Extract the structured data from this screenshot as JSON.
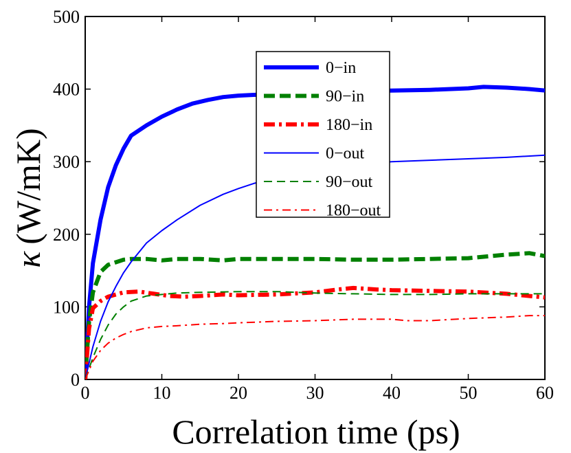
{
  "chart_data": {
    "type": "line",
    "title": "",
    "xlabel": "Correlation time (ps)",
    "ylabel_symbol": "κ",
    "ylabel_unit": "(W/mK)",
    "xlim": [
      0,
      60
    ],
    "ylim": [
      0,
      500
    ],
    "xticks": [
      0,
      10,
      20,
      30,
      40,
      50,
      60
    ],
    "yticks": [
      0,
      100,
      200,
      300,
      400,
      500
    ],
    "grid": false,
    "legend_position": "top-center",
    "series": [
      {
        "name": "0−in",
        "color": "#0000ff",
        "style": "solid",
        "weight": "thick",
        "points": [
          [
            0,
            0
          ],
          [
            0.5,
            100
          ],
          [
            1,
            160
          ],
          [
            2,
            220
          ],
          [
            3,
            265
          ],
          [
            4,
            295
          ],
          [
            5,
            318
          ],
          [
            6,
            336
          ],
          [
            8,
            350
          ],
          [
            10,
            362
          ],
          [
            12,
            372
          ],
          [
            14,
            380
          ],
          [
            16,
            385
          ],
          [
            18,
            389
          ],
          [
            20,
            391
          ],
          [
            22,
            392
          ],
          [
            25,
            393
          ],
          [
            28,
            394
          ],
          [
            30,
            395
          ],
          [
            35,
            397
          ],
          [
            40,
            398
          ],
          [
            45,
            399
          ],
          [
            50,
            401
          ],
          [
            52,
            403
          ],
          [
            55,
            402
          ],
          [
            58,
            400
          ],
          [
            60,
            398
          ]
        ]
      },
      {
        "name": "90−in",
        "color": "#008000",
        "style": "dashed",
        "weight": "thick",
        "points": [
          [
            0,
            0
          ],
          [
            0.5,
            80
          ],
          [
            1,
            120
          ],
          [
            2,
            148
          ],
          [
            3,
            158
          ],
          [
            5,
            165
          ],
          [
            6,
            166
          ],
          [
            8,
            166
          ],
          [
            10,
            164
          ],
          [
            12,
            166
          ],
          [
            15,
            166
          ],
          [
            18,
            164
          ],
          [
            20,
            166
          ],
          [
            25,
            166
          ],
          [
            30,
            166
          ],
          [
            35,
            165
          ],
          [
            40,
            165
          ],
          [
            45,
            166
          ],
          [
            50,
            167
          ],
          [
            55,
            172
          ],
          [
            58,
            174
          ],
          [
            60,
            170
          ]
        ]
      },
      {
        "name": "180−in",
        "color": "#ff0000",
        "style": "dashdot",
        "weight": "thick",
        "points": [
          [
            0,
            0
          ],
          [
            0.5,
            70
          ],
          [
            1,
            98
          ],
          [
            2,
            108
          ],
          [
            3,
            114
          ],
          [
            5,
            120
          ],
          [
            7,
            121
          ],
          [
            9,
            118
          ],
          [
            11,
            115
          ],
          [
            13,
            114
          ],
          [
            15,
            115
          ],
          [
            18,
            117
          ],
          [
            20,
            116
          ],
          [
            25,
            117
          ],
          [
            30,
            120
          ],
          [
            33,
            124
          ],
          [
            35,
            126
          ],
          [
            38,
            124
          ],
          [
            40,
            123
          ],
          [
            45,
            122
          ],
          [
            50,
            121
          ],
          [
            55,
            118
          ],
          [
            58,
            115
          ],
          [
            60,
            113
          ]
        ]
      },
      {
        "name": "0−out",
        "color": "#0000ff",
        "style": "solid",
        "weight": "thin",
        "points": [
          [
            0,
            0
          ],
          [
            1,
            45
          ],
          [
            2,
            80
          ],
          [
            3,
            107
          ],
          [
            4,
            128
          ],
          [
            5,
            147
          ],
          [
            6,
            162
          ],
          [
            8,
            188
          ],
          [
            10,
            205
          ],
          [
            12,
            220
          ],
          [
            15,
            240
          ],
          [
            18,
            255
          ],
          [
            20,
            263
          ],
          [
            22,
            270
          ],
          [
            25,
            278
          ],
          [
            28,
            284
          ],
          [
            30,
            288
          ],
          [
            35,
            296
          ],
          [
            40,
            300
          ],
          [
            45,
            302
          ],
          [
            50,
            304
          ],
          [
            55,
            306
          ],
          [
            60,
            309
          ]
        ]
      },
      {
        "name": "90−out",
        "color": "#008000",
        "style": "dashed",
        "weight": "thin",
        "points": [
          [
            0,
            0
          ],
          [
            1,
            30
          ],
          [
            2,
            55
          ],
          [
            3,
            75
          ],
          [
            4,
            90
          ],
          [
            5,
            100
          ],
          [
            6,
            108
          ],
          [
            8,
            115
          ],
          [
            10,
            117
          ],
          [
            12,
            119
          ],
          [
            15,
            120
          ],
          [
            20,
            121
          ],
          [
            25,
            121
          ],
          [
            30,
            119
          ],
          [
            35,
            118
          ],
          [
            40,
            117
          ],
          [
            45,
            117
          ],
          [
            50,
            118
          ],
          [
            55,
            118
          ],
          [
            60,
            118
          ]
        ]
      },
      {
        "name": "180−out",
        "color": "#ff0000",
        "style": "dashdot",
        "weight": "thin",
        "points": [
          [
            0,
            0
          ],
          [
            1,
            25
          ],
          [
            2,
            40
          ],
          [
            3,
            50
          ],
          [
            4,
            57
          ],
          [
            5,
            62
          ],
          [
            6,
            66
          ],
          [
            8,
            71
          ],
          [
            10,
            73
          ],
          [
            12,
            74
          ],
          [
            15,
            76
          ],
          [
            18,
            77
          ],
          [
            20,
            78
          ],
          [
            25,
            80
          ],
          [
            30,
            81
          ],
          [
            35,
            83
          ],
          [
            40,
            83
          ],
          [
            42,
            81
          ],
          [
            45,
            81
          ],
          [
            50,
            84
          ],
          [
            55,
            86
          ],
          [
            58,
            88
          ],
          [
            60,
            88
          ]
        ]
      }
    ]
  }
}
